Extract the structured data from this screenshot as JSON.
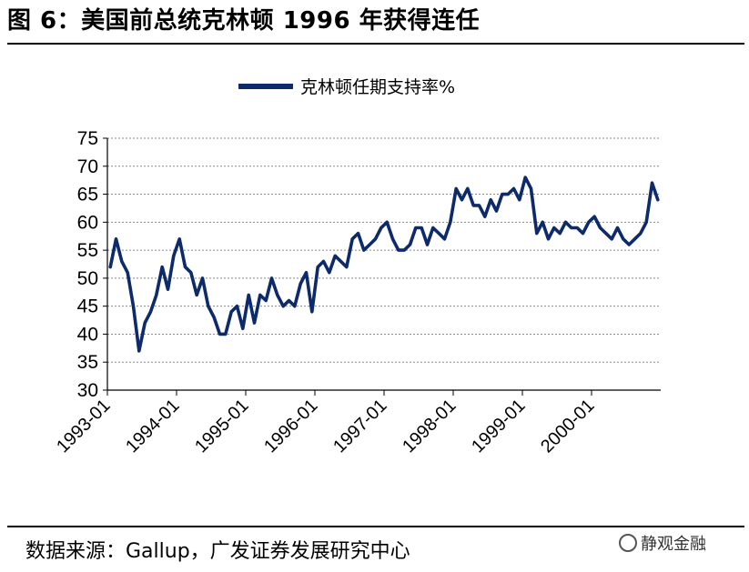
{
  "header": {
    "title": "图 6：美国前总统克林顿 1996 年获得连任"
  },
  "footer": {
    "source": "数据来源：Gallup，广发证券发展研究中心",
    "watermark": "静观金融"
  },
  "colors": {
    "series": "#0d2a6b",
    "grid": "#8a8a8a",
    "axis": "#000000"
  },
  "chart_data": {
    "type": "line",
    "legend_position": "top-center",
    "grid": true,
    "ylim": [
      30,
      75
    ],
    "yticks": [
      30,
      35,
      40,
      45,
      50,
      55,
      60,
      65,
      70,
      75
    ],
    "x_start": "1993-01",
    "x_end": "2000-12",
    "x_tick_labels": [
      "1993-01",
      "1994-01",
      "1995-01",
      "1996-01",
      "1997-01",
      "1998-01",
      "1999-01",
      "2000-01"
    ],
    "series": [
      {
        "name": "克林顿任期支持率%",
        "x": [
          "1993-01",
          "1993-02",
          "1993-03",
          "1993-04",
          "1993-05",
          "1993-06",
          "1993-07",
          "1993-08",
          "1993-09",
          "1993-10",
          "1993-11",
          "1993-12",
          "1994-01",
          "1994-02",
          "1994-03",
          "1994-04",
          "1994-05",
          "1994-06",
          "1994-07",
          "1994-08",
          "1994-09",
          "1994-10",
          "1994-11",
          "1994-12",
          "1995-01",
          "1995-02",
          "1995-03",
          "1995-04",
          "1995-05",
          "1995-06",
          "1995-07",
          "1995-08",
          "1995-09",
          "1995-10",
          "1995-11",
          "1995-12",
          "1996-01",
          "1996-02",
          "1996-03",
          "1996-04",
          "1996-05",
          "1996-06",
          "1996-07",
          "1996-08",
          "1996-09",
          "1996-10",
          "1996-11",
          "1996-12",
          "1997-01",
          "1997-02",
          "1997-03",
          "1997-04",
          "1997-05",
          "1997-06",
          "1997-07",
          "1997-08",
          "1997-09",
          "1997-10",
          "1997-11",
          "1997-12",
          "1998-01",
          "1998-02",
          "1998-03",
          "1998-04",
          "1998-05",
          "1998-06",
          "1998-07",
          "1998-08",
          "1998-09",
          "1998-10",
          "1998-11",
          "1998-12",
          "1999-01",
          "1999-02",
          "1999-03",
          "1999-04",
          "1999-05",
          "1999-06",
          "1999-07",
          "1999-08",
          "1999-09",
          "1999-10",
          "1999-11",
          "1999-12",
          "2000-01",
          "2000-02",
          "2000-03",
          "2000-04",
          "2000-05",
          "2000-06",
          "2000-07",
          "2000-08",
          "2000-09",
          "2000-10",
          "2000-11",
          "2000-12"
        ],
        "values": [
          52,
          57,
          53,
          51,
          45,
          37,
          42,
          44,
          47,
          52,
          48,
          54,
          57,
          52,
          51,
          47,
          50,
          45,
          43,
          40,
          40,
          44,
          45,
          41,
          47,
          42,
          47,
          46,
          50,
          47,
          45,
          46,
          45,
          49,
          51,
          44,
          52,
          53,
          51,
          54,
          53,
          52,
          57,
          58,
          55,
          56,
          57,
          59,
          60,
          57,
          55,
          55,
          56,
          59,
          59,
          56,
          59,
          58,
          57,
          60,
          66,
          64,
          66,
          63,
          63,
          61,
          64,
          62,
          65,
          65,
          66,
          64,
          68,
          66,
          58,
          60,
          57,
          59,
          58,
          60,
          59,
          59,
          58,
          60,
          61,
          59,
          58,
          57,
          59,
          57,
          56,
          57,
          58,
          60,
          67,
          64
        ]
      }
    ]
  }
}
